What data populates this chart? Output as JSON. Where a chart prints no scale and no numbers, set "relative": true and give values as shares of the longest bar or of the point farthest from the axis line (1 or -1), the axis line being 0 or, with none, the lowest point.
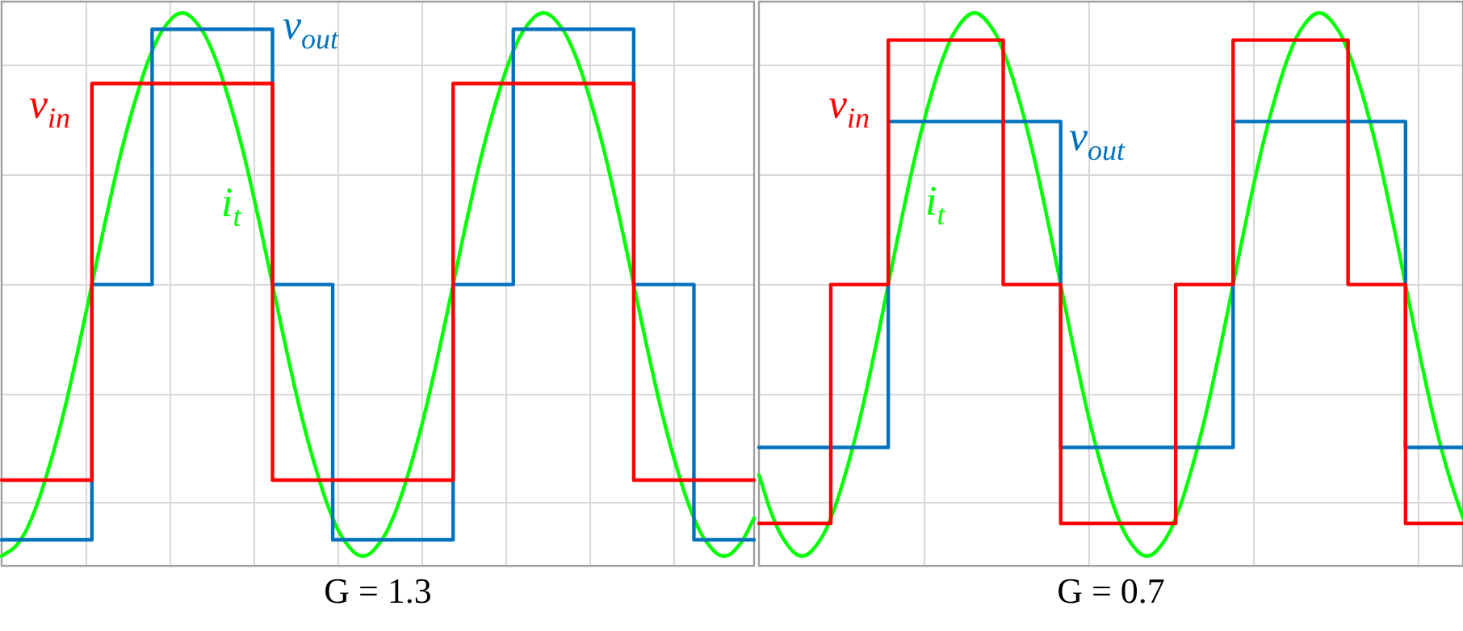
{
  "chart_data": [
    {
      "type": "line",
      "xlabel": "G = 1.3",
      "relative": true,
      "grid": true,
      "legend": false,
      "tick_labels": false,
      "categories": [
        null,
        null,
        null,
        null,
        null,
        null,
        null,
        null,
        null,
        null,
        null,
        null,
        null,
        null,
        null,
        null,
        null,
        null,
        null,
        null,
        null,
        null,
        null,
        null,
        null,
        null,
        null,
        null,
        null,
        null,
        null,
        null,
        null,
        null,
        null,
        null,
        null,
        null,
        null,
        null,
        null,
        null,
        null,
        null,
        null,
        null,
        null,
        null,
        null,
        null,
        null
      ],
      "series": [
        {
          "name": "v$_{in}$",
          "type": "step",
          "color": "#ff0000",
          "values": [
            0.14,
            0.14,
            0.14,
            0.14,
            0.14,
            0.14,
            0.87,
            0.87,
            0.87,
            0.87,
            0.87,
            0.87,
            0.87,
            0.87,
            0.87,
            0.87,
            0.87,
            0.87,
            0.14,
            0.14,
            0.14,
            0.14,
            0.14,
            0.14,
            0.14,
            0.14,
            0.14,
            0.14,
            0.14,
            0.14,
            0.87,
            0.87,
            0.87,
            0.87,
            0.87,
            0.87,
            0.87,
            0.87,
            0.87,
            0.87,
            0.87,
            0.87,
            0.14,
            0.14,
            0.14,
            0.14,
            0.14,
            0.14,
            0.14,
            0.14,
            0.14
          ]
        },
        {
          "name": "v$_{out}$",
          "type": "step",
          "color": "#0072bd",
          "values": [
            0.03,
            0.03,
            0.03,
            0.03,
            0.03,
            0.03,
            0.5,
            0.5,
            0.5,
            0.5,
            0.97,
            0.97,
            0.97,
            0.97,
            0.97,
            0.97,
            0.97,
            0.97,
            0.5,
            0.5,
            0.5,
            0.5,
            0.03,
            0.03,
            0.03,
            0.03,
            0.03,
            0.03,
            0.03,
            0.03,
            0.5,
            0.5,
            0.5,
            0.5,
            0.97,
            0.97,
            0.97,
            0.97,
            0.97,
            0.97,
            0.97,
            0.97,
            0.5,
            0.5,
            0.5,
            0.5,
            0.03,
            0.03,
            0.03,
            0.03,
            0.03
          ]
        },
        {
          "name": "i$_{t}$",
          "type": "line",
          "color": "#00ff00",
          "values": [
            0,
            0.02,
            0.07,
            0.15,
            0.25,
            0.37,
            0.5,
            0.63,
            0.75,
            0.85,
            0.93,
            0.98,
            1,
            0.98,
            0.93,
            0.85,
            0.75,
            0.63,
            0.5,
            0.37,
            0.25,
            0.15,
            0.07,
            0.02,
            0,
            0.02,
            0.07,
            0.15,
            0.25,
            0.37,
            0.5,
            0.63,
            0.75,
            0.85,
            0.93,
            0.98,
            1,
            0.98,
            0.93,
            0.85,
            0.75,
            0.63,
            0.5,
            0.37,
            0.25,
            0.15,
            0.07,
            0.02,
            0,
            0.02,
            0.07
          ]
        }
      ]
    },
    {
      "type": "line",
      "xlabel": "G = 0.7",
      "relative": true,
      "grid": true,
      "legend": false,
      "tick_labels": false,
      "categories": [
        null,
        null,
        null,
        null,
        null,
        null,
        null,
        null,
        null,
        null,
        null,
        null,
        null,
        null,
        null,
        null,
        null,
        null,
        null,
        null,
        null,
        null,
        null,
        null,
        null,
        null,
        null,
        null,
        null,
        null,
        null,
        null,
        null,
        null,
        null,
        null,
        null,
        null,
        null,
        null,
        null,
        null,
        null,
        null,
        null,
        null,
        null,
        null,
        null,
        null
      ],
      "series": [
        {
          "name": "v$_{in}$",
          "type": "step",
          "color": "#ff0000",
          "values": [
            0.06,
            0.06,
            0.06,
            0.06,
            0.06,
            0.5,
            0.5,
            0.5,
            0.5,
            0.95,
            0.95,
            0.95,
            0.95,
            0.95,
            0.95,
            0.95,
            0.95,
            0.5,
            0.5,
            0.5,
            0.5,
            0.06,
            0.06,
            0.06,
            0.06,
            0.06,
            0.06,
            0.06,
            0.06,
            0.5,
            0.5,
            0.5,
            0.5,
            0.95,
            0.95,
            0.95,
            0.95,
            0.95,
            0.95,
            0.95,
            0.95,
            0.5,
            0.5,
            0.5,
            0.5,
            0.06,
            0.06,
            0.06,
            0.06,
            0.06
          ]
        },
        {
          "name": "v$_{out}$",
          "type": "step",
          "color": "#0072bd",
          "values": [
            0.2,
            0.2,
            0.2,
            0.2,
            0.2,
            0.2,
            0.2,
            0.2,
            0.2,
            0.8,
            0.8,
            0.8,
            0.8,
            0.8,
            0.8,
            0.8,
            0.8,
            0.8,
            0.8,
            0.8,
            0.8,
            0.2,
            0.2,
            0.2,
            0.2,
            0.2,
            0.2,
            0.2,
            0.2,
            0.2,
            0.2,
            0.2,
            0.2,
            0.8,
            0.8,
            0.8,
            0.8,
            0.8,
            0.8,
            0.8,
            0.8,
            0.8,
            0.8,
            0.8,
            0.8,
            0.2,
            0.2,
            0.2,
            0.2,
            0.2
          ]
        },
        {
          "name": "i$_{t}$",
          "type": "line",
          "color": "#00ff00",
          "values": [
            0.15,
            0.07,
            0.02,
            0,
            0.02,
            0.07,
            0.15,
            0.25,
            0.37,
            0.5,
            0.63,
            0.75,
            0.85,
            0.93,
            0.98,
            1,
            0.98,
            0.93,
            0.85,
            0.75,
            0.63,
            0.5,
            0.37,
            0.25,
            0.15,
            0.07,
            0.02,
            0,
            0.02,
            0.07,
            0.15,
            0.25,
            0.37,
            0.5,
            0.63,
            0.75,
            0.85,
            0.93,
            0.98,
            1,
            0.98,
            0.93,
            0.85,
            0.75,
            0.63,
            0.5,
            0.37,
            0.25,
            0.15,
            0.07
          ]
        }
      ]
    }
  ]
}
